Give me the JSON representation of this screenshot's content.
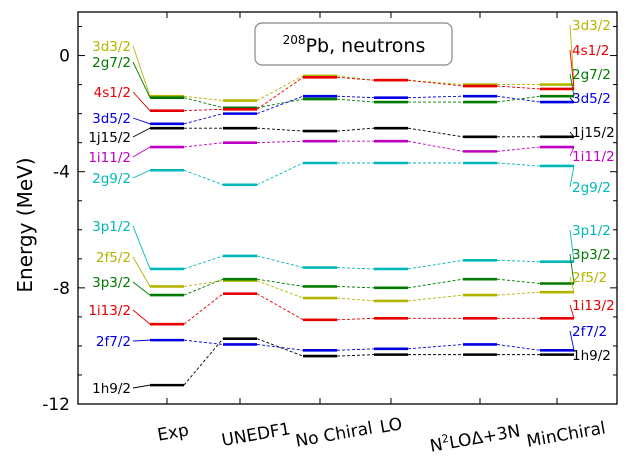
{
  "chart_data": {
    "type": "level-scheme",
    "title_super": "208",
    "title_rest": "Pb, neutrons",
    "ylabel": "Energy (MeV)",
    "ylim": [
      -12,
      1.5
    ],
    "yticks": [
      0,
      -4,
      -8,
      -12
    ],
    "yticklabels": [
      "0",
      "-4",
      "-8",
      "-12"
    ],
    "columns": [
      "Exp",
      "UNEDF1",
      "No Chiral",
      "LO",
      "N2LOΔ+3N",
      "MinChiral"
    ],
    "column_labels": {
      "exp": "Exp",
      "unedf1": "UNEDF1",
      "nochiral": "No Chiral",
      "lo": "LO",
      "n2lo_base": "N",
      "n2lo_sup": "2",
      "n2lo_rest": "LOΔ+3N",
      "minchiral": "MinChiral"
    },
    "levels": [
      {
        "name": "3d3/2",
        "color": "#b5b500",
        "values": [
          -1.4,
          -1.55,
          -0.7,
          -0.85,
          -1.0,
          -1.0
        ]
      },
      {
        "name": "2g7/2",
        "color": "#007a00",
        "values": [
          -1.45,
          -1.8,
          -1.5,
          -1.6,
          -1.6,
          -1.4
        ]
      },
      {
        "name": "4s1/2",
        "color": "#e60000",
        "values": [
          -1.9,
          -1.85,
          -0.75,
          -0.85,
          -1.05,
          -1.15
        ]
      },
      {
        "name": "3d5/2",
        "color": "#0000e0",
        "values": [
          -2.35,
          -2.0,
          -1.4,
          -1.45,
          -1.4,
          -1.6
        ]
      },
      {
        "name": "1j15/2",
        "color": "#000000",
        "values": [
          -2.5,
          -2.5,
          -2.6,
          -2.5,
          -2.8,
          -2.8
        ]
      },
      {
        "name": "1i11/2",
        "color": "#c000c0",
        "values": [
          -3.15,
          -3.0,
          -2.95,
          -2.95,
          -3.3,
          -3.15
        ]
      },
      {
        "name": "2g9/2",
        "color": "#00b8b8",
        "values": [
          -3.95,
          -4.45,
          -3.7,
          -3.7,
          -3.7,
          -3.8
        ]
      },
      {
        "name": "3p1/2",
        "color": "#00b8b8",
        "values": [
          -7.35,
          -6.9,
          -7.3,
          -7.35,
          -7.05,
          -7.1
        ]
      },
      {
        "name": "2f5/2",
        "color": "#b5b500",
        "values": [
          -7.95,
          -7.75,
          -8.35,
          -8.45,
          -8.25,
          -8.15
        ]
      },
      {
        "name": "3p3/2",
        "color": "#007a00",
        "values": [
          -8.25,
          -7.7,
          -7.95,
          -8.0,
          -7.7,
          -7.85
        ]
      },
      {
        "name": "1i13/2",
        "color": "#e60000",
        "values": [
          -9.25,
          -8.2,
          -9.1,
          -9.05,
          -9.05,
          -9.05
        ]
      },
      {
        "name": "2f7/2",
        "color": "#0000e0",
        "values": [
          -9.8,
          -9.95,
          -10.15,
          -10.1,
          -9.95,
          -10.15
        ]
      },
      {
        "name": "1h9/2",
        "color": "#000000",
        "values": [
          -11.35,
          -9.75,
          -10.35,
          -10.3,
          -10.3,
          -10.3
        ]
      }
    ],
    "left_labels": [
      "3d3/2",
      "2g7/2",
      "4s1/2",
      "3d5/2",
      "1j15/2",
      "1i11/2",
      "2g9/2",
      "3p1/2",
      "2f5/2",
      "3p3/2",
      "1i13/2",
      "2f7/2",
      "1h9/2"
    ],
    "right_labels": [
      "3d3/2",
      "4s1/2",
      "2g7/2",
      "3d5/2",
      "1j15/2",
      "1i11/2",
      "2g9/2",
      "3p1/2",
      "3p3/2",
      "2f5/2",
      "1i13/2",
      "2f7/2",
      "1h9/2"
    ]
  }
}
